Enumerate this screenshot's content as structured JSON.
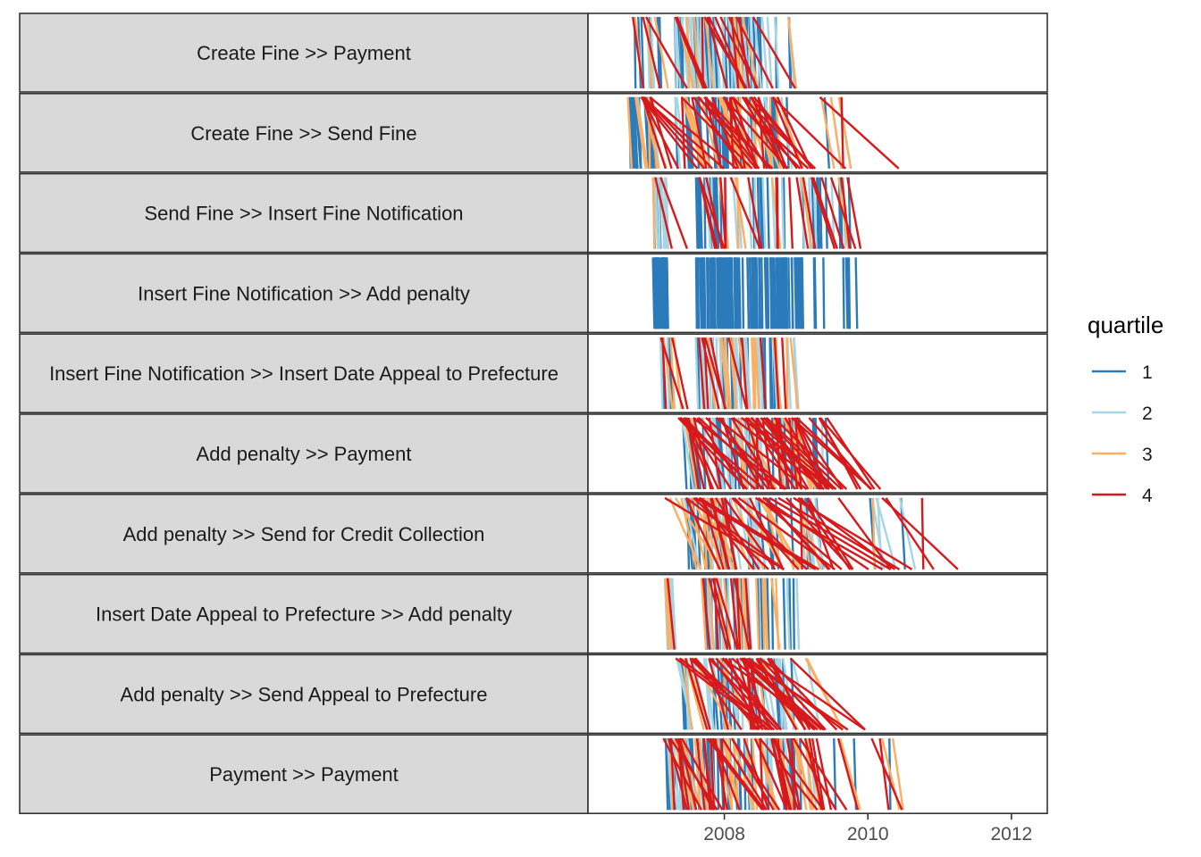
{
  "chart_data": {
    "type": "line",
    "description_note": "",
    "panels": [
      {
        "label": "Create Fine >> Payment",
        "n": 110,
        "start": [
          2006.7,
          2007.1
        ],
        "early": [
          2007.3,
          2008.5
        ],
        "late": [
          2008.5,
          2009.0
        ],
        "mix": [
          0.45,
          0.25,
          0.1,
          0.2
        ],
        "lagMax": 0.6
      },
      {
        "label": "Create Fine >> Send Fine",
        "n": 130,
        "start": [
          2006.65,
          2007.0
        ],
        "early": [
          2007.3,
          2008.8
        ],
        "late": [
          2008.8,
          2009.7
        ],
        "mix": [
          0.35,
          0.15,
          0.2,
          0.3
        ],
        "lagMax": 1.2
      },
      {
        "label": "Send Fine >> Insert Fine Notification",
        "n": 90,
        "start": [
          2007.0,
          2007.2
        ],
        "early": [
          2007.6,
          2009.4
        ],
        "late": [
          2009.4,
          2009.75
        ],
        "mix": [
          0.45,
          0.25,
          0.1,
          0.2
        ],
        "lagMax": 0.4
      },
      {
        "label": "Insert Fine Notification >> Add penalty",
        "n": 140,
        "start": [
          2007.0,
          2007.2
        ],
        "early": [
          2007.6,
          2009.1
        ],
        "late": [
          2009.1,
          2009.9
        ],
        "mix": [
          1.0,
          0.0,
          0.0,
          0.0
        ],
        "lagMax": 0.25
      },
      {
        "label": "Insert Fine Notification >> Insert Date Appeal to Prefecture",
        "n": 80,
        "start": [
          2007.1,
          2007.3
        ],
        "early": [
          2007.6,
          2008.7
        ],
        "late": [
          2008.7,
          2009.0
        ],
        "mix": [
          0.25,
          0.35,
          0.2,
          0.2
        ],
        "lagMax": 0.35
      },
      {
        "label": "Add penalty >> Payment",
        "n": 120,
        "start": [
          2007.35,
          2007.6
        ],
        "early": [
          2007.6,
          2009.0
        ],
        "late": [
          2009.0,
          2009.5
        ],
        "mix": [
          0.3,
          0.2,
          0.15,
          0.35
        ],
        "lagMax": 1.3
      },
      {
        "label": "Add penalty >> Send for Credit Collection",
        "n": 110,
        "start": [
          2007.15,
          2008.0
        ],
        "early": [
          2007.4,
          2009.2
        ],
        "late": [
          2009.2,
          2010.8
        ],
        "mix": [
          0.25,
          0.2,
          0.15,
          0.4
        ],
        "lagMax": 1.8
      },
      {
        "label": "Insert Date Appeal to Prefecture >> Add penalty",
        "n": 80,
        "start": [
          2007.15,
          2007.3
        ],
        "early": [
          2007.6,
          2008.6
        ],
        "late": [
          2008.6,
          2009.2
        ],
        "mix": [
          0.3,
          0.3,
          0.2,
          0.2
        ],
        "lagMax": 0.3
      },
      {
        "label": "Add penalty >> Send Appeal to Prefecture",
        "n": 90,
        "start": [
          2007.3,
          2007.6
        ],
        "early": [
          2007.7,
          2008.8
        ],
        "late": [
          2008.8,
          2009.2
        ],
        "mix": [
          0.2,
          0.3,
          0.15,
          0.35
        ],
        "lagMax": 1.5
      },
      {
        "label": "Payment >> Payment",
        "n": 140,
        "start": [
          2007.15,
          2007.4
        ],
        "early": [
          2007.4,
          2009.2
        ],
        "late": [
          2009.2,
          2010.4
        ],
        "mix": [
          0.3,
          0.2,
          0.2,
          0.3
        ],
        "lagMax": 0.8
      }
    ],
    "x_axis": {
      "range": [
        2006.1,
        2012.5
      ],
      "ticks": [
        2008,
        2010,
        2012
      ],
      "tick_labels": [
        "2008",
        "2010",
        "2012"
      ]
    },
    "legend": {
      "title": "quartile",
      "position": "right",
      "entries": [
        {
          "label": "1",
          "color": "#2b7bba"
        },
        {
          "label": "2",
          "color": "#a6d5e3"
        },
        {
          "label": "3",
          "color": "#fdae61"
        },
        {
          "label": "4",
          "color": "#d7191c"
        }
      ]
    },
    "grid": false
  }
}
